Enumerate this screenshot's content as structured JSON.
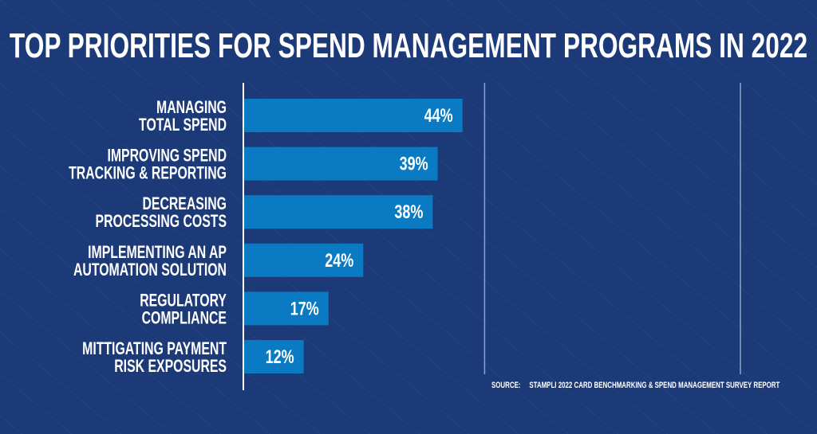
{
  "colors": {
    "background": "#1c3a78",
    "bar": "#0a7bc2",
    "text": "#ffffff",
    "gridline": "#8ea3c8"
  },
  "chart_data": {
    "type": "bar",
    "orientation": "horizontal",
    "title": "TOP PRIORITIES FOR SPEND MANAGEMENT PROGRAMS IN 2022",
    "categories": [
      [
        "MANAGING",
        "TOTAL SPEND"
      ],
      [
        "IMPROVING SPEND",
        "TRACKING & REPORTING"
      ],
      [
        "DECREASING",
        "PROCESSING COSTS"
      ],
      [
        "IMPLEMENTING AN AP",
        "AUTOMATION SOLUTION"
      ],
      [
        "REGULATORY",
        "COMPLIANCE"
      ],
      [
        "MITTIGATING PAYMENT",
        "RISK EXPOSURES"
      ]
    ],
    "values": [
      44,
      39,
      38,
      24,
      17,
      12
    ],
    "data_labels": [
      "44%",
      "39%",
      "38%",
      "24%",
      "17%",
      "12%"
    ],
    "xlim": [
      0,
      100
    ],
    "gridlines": [
      50,
      100
    ],
    "grid": true,
    "legend": "none",
    "xlabel": "",
    "ylabel": ""
  },
  "source": {
    "label": "SOURCE:",
    "text": "STAMPLI 2022 CARD BENCHMARKING & SPEND MANAGEMENT SURVEY REPORT"
  }
}
